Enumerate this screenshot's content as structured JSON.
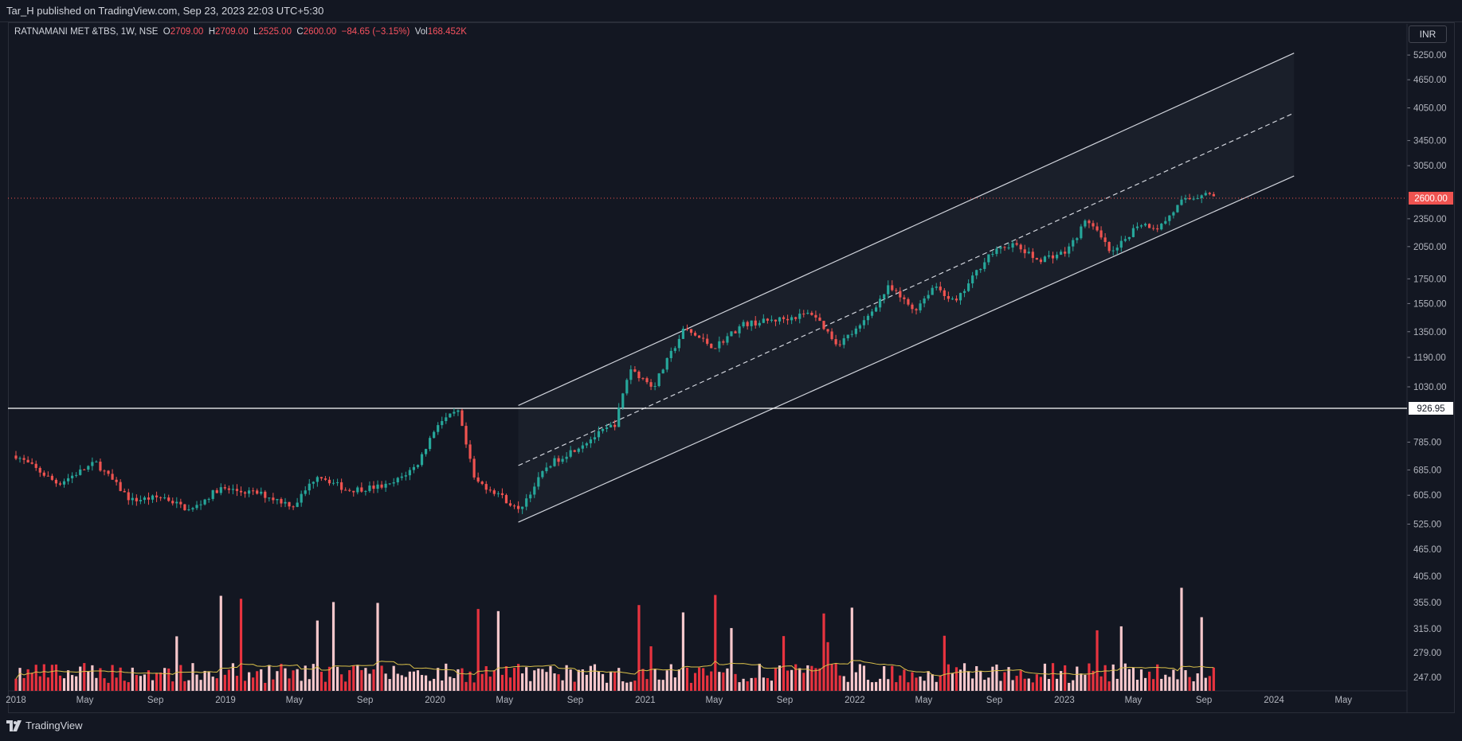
{
  "header": {
    "publisher_text": "Tar_H published on TradingView.com, Sep 23, 2023 22:03 UTC+5:30"
  },
  "legend": {
    "symbol": "RATNAMANI MET &TBS, 1W, NSE",
    "open_label": "O",
    "open": "2709.00",
    "high_label": "H",
    "high": "2709.00",
    "low_label": "L",
    "low": "2525.00",
    "close_label": "C",
    "close": "2600.00",
    "change": "−84.65 (−3.15%)",
    "vol_label": "Vol",
    "vol": "168.452K"
  },
  "currency": "INR",
  "footer": {
    "brand": "TradingView"
  },
  "colors": {
    "up": "#26a69a",
    "down": "#ef5350",
    "bg": "#131722",
    "vol_up": "#f8c8cc",
    "vol_down": "#e8333f",
    "ma": "#d9c04a"
  },
  "chart_data": {
    "type": "candlestick",
    "symbol": "RATNAMANI MET &TBS",
    "interval": "1W",
    "exchange": "NSE",
    "y_scale": "log",
    "y_ticks": [
      "5250.00",
      "4650.00",
      "4050.00",
      "3450.00",
      "3050.00",
      "2350.00",
      "2050.00",
      "1750.00",
      "1550.00",
      "1350.00",
      "1190.00",
      "1030.00",
      "785.00",
      "685.00",
      "605.00",
      "525.00",
      "465.00",
      "405.00",
      "355.00",
      "315.00",
      "279.00",
      "247.00"
    ],
    "x_ticks": [
      "2018",
      "May",
      "Sep",
      "2019",
      "May",
      "Sep",
      "2020",
      "May",
      "Sep",
      "2021",
      "May",
      "Sep",
      "2022",
      "May",
      "Sep",
      "2023",
      "May",
      "Sep",
      "2024",
      "May"
    ],
    "last_price": "2600.00",
    "horizontal_level": "926.95",
    "price_path": [
      [
        "2018-01-01",
        735
      ],
      [
        "2018-03-15",
        640
      ],
      [
        "2018-05-20",
        710
      ],
      [
        "2018-07-20",
        590
      ],
      [
        "2018-09-15",
        600
      ],
      [
        "2018-11-01",
        560
      ],
      [
        "2018-12-20",
        625
      ],
      [
        "2019-03-01",
        610
      ],
      [
        "2019-04-30",
        575
      ],
      [
        "2019-06-10",
        670
      ],
      [
        "2019-08-01",
        620
      ],
      [
        "2019-10-15",
        635
      ],
      [
        "2019-11-30",
        700
      ],
      [
        "2020-01-05",
        860
      ],
      [
        "2020-02-10",
        910
      ],
      [
        "2020-03-10",
        650
      ],
      [
        "2020-04-20",
        610
      ],
      [
        "2020-05-25",
        560
      ],
      [
        "2020-07-15",
        700
      ],
      [
        "2020-09-15",
        780
      ],
      [
        "2020-11-10",
        860
      ],
      [
        "2020-12-05",
        1130
      ],
      [
        "2021-01-15",
        1030
      ],
      [
        "2021-03-10",
        1370
      ],
      [
        "2021-05-01",
        1250
      ],
      [
        "2021-06-20",
        1400
      ],
      [
        "2021-09-01",
        1440
      ],
      [
        "2021-10-20",
        1480
      ],
      [
        "2021-12-01",
        1270
      ],
      [
        "2022-01-10",
        1380
      ],
      [
        "2022-03-01",
        1680
      ],
      [
        "2022-04-15",
        1500
      ],
      [
        "2022-05-20",
        1700
      ],
      [
        "2022-06-25",
        1550
      ],
      [
        "2022-08-20",
        1960
      ],
      [
        "2022-10-01",
        2080
      ],
      [
        "2022-11-15",
        1920
      ],
      [
        "2023-01-05",
        2000
      ],
      [
        "2023-02-10",
        2350
      ],
      [
        "2023-03-25",
        1970
      ],
      [
        "2023-05-10",
        2300
      ],
      [
        "2023-06-15",
        2250
      ],
      [
        "2023-07-25",
        2560
      ],
      [
        "2023-08-20",
        2620
      ],
      [
        "2023-09-05",
        2700
      ],
      [
        "2023-09-18",
        2600
      ]
    ],
    "channel": {
      "lower": [
        [
          "2020-05-25",
          530
        ],
        [
          "2024-02-05",
          2900
        ]
      ],
      "middle": [
        [
          "2020-05-25",
          700
        ],
        [
          "2024-02-05",
          3950
        ]
      ],
      "upper": [
        [
          "2020-05-25",
          940
        ],
        [
          "2024-02-05",
          5300
        ]
      ]
    },
    "volume": {
      "ma_line": true,
      "color_up": "#f8c8cc",
      "color_down": "#e8333f"
    }
  }
}
